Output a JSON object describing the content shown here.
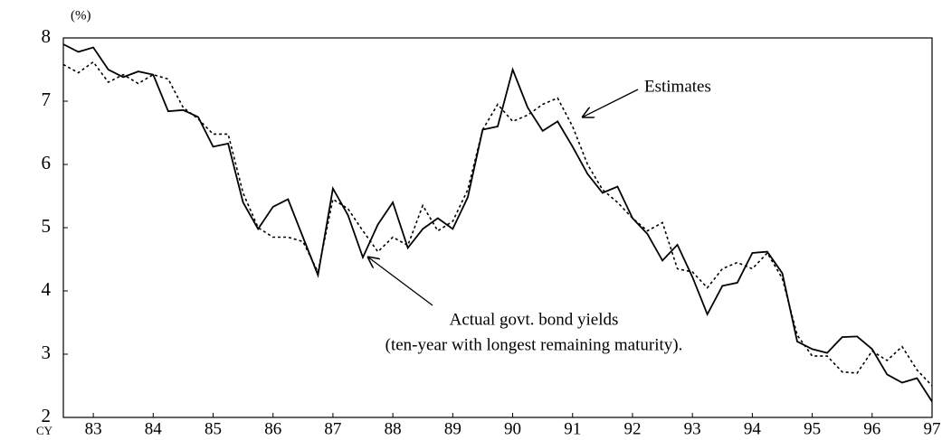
{
  "chart_data": {
    "type": "line",
    "y_unit": "(%)",
    "x_label": "CY",
    "x": [
      82.5,
      82.75,
      83,
      83.25,
      83.5,
      83.75,
      84,
      84.25,
      84.5,
      84.75,
      85,
      85.25,
      85.5,
      85.75,
      86,
      86.25,
      86.5,
      86.75,
      87,
      87.25,
      87.5,
      87.75,
      88,
      88.25,
      88.5,
      88.75,
      89,
      89.25,
      89.5,
      89.75,
      90,
      90.25,
      90.5,
      90.75,
      91,
      91.25,
      91.5,
      91.75,
      92,
      92.25,
      92.5,
      92.75,
      93,
      93.25,
      93.5,
      93.75,
      94,
      94.25,
      94.5,
      94.75,
      95,
      95.25,
      95.5,
      95.75,
      96,
      96.25,
      96.5,
      96.75,
      97
    ],
    "series": [
      {
        "color": "#000000",
        "dash": "solid",
        "values": [
          7.9,
          7.78,
          7.85,
          7.5,
          7.38,
          7.47,
          7.42,
          6.84,
          6.86,
          6.75,
          6.28,
          6.33,
          5.4,
          4.98,
          5.33,
          5.45,
          4.85,
          4.25,
          5.62,
          5.2,
          4.53,
          5.05,
          5.4,
          4.68,
          4.98,
          5.15,
          4.98,
          5.48,
          6.55,
          6.6,
          7.5,
          6.9,
          6.53,
          6.68,
          6.28,
          5.85,
          5.55,
          5.65,
          5.15,
          4.9,
          4.48,
          4.73,
          4.22,
          3.63,
          4.08,
          4.13,
          4.6,
          4.62,
          4.28,
          3.2,
          3.08,
          3.02,
          3.27,
          3.28,
          3.08,
          2.68,
          2.55,
          2.62,
          2.25
        ]
      },
      {
        "color": "#000000",
        "dash": "dotted",
        "values": [
          7.58,
          7.45,
          7.62,
          7.3,
          7.42,
          7.28,
          7.42,
          7.35,
          6.9,
          6.72,
          6.48,
          6.48,
          5.55,
          5.0,
          4.85,
          4.85,
          4.78,
          4.3,
          5.45,
          5.3,
          4.95,
          4.62,
          4.85,
          4.72,
          5.35,
          4.95,
          5.1,
          5.6,
          6.55,
          6.95,
          6.68,
          6.78,
          6.95,
          7.05,
          6.6,
          6.0,
          5.6,
          5.4,
          5.15,
          4.95,
          5.08,
          4.35,
          4.3,
          4.05,
          4.35,
          4.45,
          4.35,
          4.6,
          4.2,
          3.3,
          2.97,
          2.97,
          2.72,
          2.7,
          3.05,
          2.9,
          3.12,
          2.75,
          2.5
        ]
      }
    ],
    "xlim": [
      82.5,
      97
    ],
    "xticks": [
      83,
      84,
      85,
      86,
      87,
      88,
      89,
      90,
      91,
      92,
      93,
      94,
      95,
      96,
      97
    ],
    "ylim": [
      2,
      8
    ],
    "yticks": [
      2,
      3,
      4,
      5,
      6,
      7,
      8
    ],
    "annotations": [
      {
        "text": "Estimates"
      },
      {
        "text": "Actual govt. bond yields"
      },
      {
        "text": "(ten-year with longest remaining maturity)."
      }
    ]
  }
}
